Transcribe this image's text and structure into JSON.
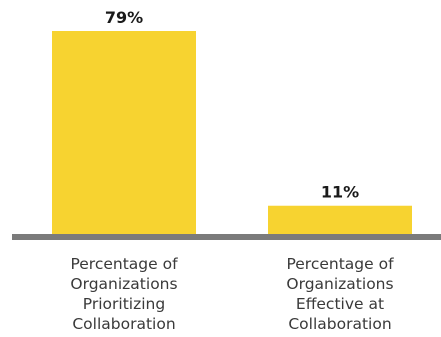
{
  "chart_data": {
    "type": "bar",
    "categories": [
      [
        "Percentage of",
        "Organizations",
        "Prioritizing",
        "Collaboration"
      ],
      [
        "Percentage of",
        "Organizations",
        "Effective at",
        "Collaboration"
      ]
    ],
    "values": [
      79,
      11
    ],
    "data_labels": [
      "79%",
      "11%"
    ],
    "ylim": [
      0,
      79
    ],
    "grid": false,
    "legend": "none",
    "title": "",
    "xlabel": "",
    "ylabel": "",
    "colors": {
      "bar": "#F7D330",
      "axis": "#7B7B7B",
      "value_text": "#1A1A1A",
      "category_text": "#3A3A3A"
    }
  }
}
